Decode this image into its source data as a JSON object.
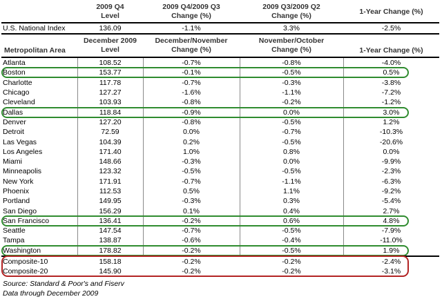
{
  "top_header": {
    "col0": "",
    "col1": [
      "2009 Q4",
      "Level"
    ],
    "col2": [
      "2009 Q4/2009 Q3",
      "Change (%)"
    ],
    "col3": [
      "2009 Q3/2009 Q2",
      "Change (%)"
    ],
    "col4": [
      "",
      "1-Year Change (%)"
    ]
  },
  "national": {
    "name": "U.S. National Index",
    "level": "136.09",
    "q4q3": "-1.1%",
    "q3q2": "3.3%",
    "yoy": "-2.5%"
  },
  "metro_header": {
    "col0": "Metropolitan Area",
    "col1": [
      "December 2009",
      "Level"
    ],
    "col2": [
      "December/November",
      "Change (%)"
    ],
    "col3": [
      "November/October",
      "Change (%)"
    ],
    "col4": "1-Year Change (%)"
  },
  "rows": [
    {
      "name": "Atlanta",
      "level": "108.52",
      "dn": "-0.7%",
      "no": "-0.8%",
      "yoy": "-4.0%"
    },
    {
      "name": "Boston",
      "level": "153.77",
      "dn": "-0.1%",
      "no": "-0.5%",
      "yoy": "0.5%",
      "highlight": "green"
    },
    {
      "name": "Charlotte",
      "level": "117.78",
      "dn": "-0.7%",
      "no": "-0.3%",
      "yoy": "-3.8%"
    },
    {
      "name": "Chicago",
      "level": "127.27",
      "dn": "-1.6%",
      "no": "-1.1%",
      "yoy": "-7.2%"
    },
    {
      "name": "Cleveland",
      "level": "103.93",
      "dn": "-0.8%",
      "no": "-0.2%",
      "yoy": "-1.2%"
    },
    {
      "name": "Dallas",
      "level": "118.84",
      "dn": "-0.9%",
      "no": "0.0%",
      "yoy": "3.0%",
      "highlight": "green"
    },
    {
      "name": "Denver",
      "level": "127.20",
      "dn": "-0.8%",
      "no": "-0.5%",
      "yoy": "1.2%"
    },
    {
      "name": "Detroit",
      "level": "72.59",
      "dn": "0.0%",
      "no": "-0.7%",
      "yoy": "-10.3%"
    },
    {
      "name": "Las Vegas",
      "level": "104.39",
      "dn": "0.2%",
      "no": "-0.5%",
      "yoy": "-20.6%"
    },
    {
      "name": "Los Angeles",
      "level": "171.40",
      "dn": "1.0%",
      "no": "0.8%",
      "yoy": "0.0%"
    },
    {
      "name": "Miami",
      "level": "148.66",
      "dn": "-0.3%",
      "no": "0.0%",
      "yoy": "-9.9%"
    },
    {
      "name": "Minneapolis",
      "level": "123.32",
      "dn": "-0.5%",
      "no": "-0.5%",
      "yoy": "-2.3%"
    },
    {
      "name": "New York",
      "level": "171.91",
      "dn": "-0.7%",
      "no": "-1.1%",
      "yoy": "-6.3%"
    },
    {
      "name": "Phoenix",
      "level": "112.53",
      "dn": "0.5%",
      "no": "1.1%",
      "yoy": "-9.2%"
    },
    {
      "name": "Portland",
      "level": "149.95",
      "dn": "-0.3%",
      "no": "0.3%",
      "yoy": "-5.4%"
    },
    {
      "name": "San Diego",
      "level": "156.29",
      "dn": "0.1%",
      "no": "0.4%",
      "yoy": "2.7%"
    },
    {
      "name": "San Francisco",
      "level": "136.41",
      "dn": "-0.2%",
      "no": "0.6%",
      "yoy": "4.8%",
      "highlight": "green"
    },
    {
      "name": "Seattle",
      "level": "147.54",
      "dn": "-0.7%",
      "no": "-0.5%",
      "yoy": "-7.9%"
    },
    {
      "name": "Tampa",
      "level": "138.87",
      "dn": "-0.6%",
      "no": "-0.4%",
      "yoy": "-11.0%"
    },
    {
      "name": "Washington",
      "level": "178.82",
      "dn": "-0.2%",
      "no": "-0.5%",
      "yoy": "1.9%",
      "highlight": "green"
    }
  ],
  "composites": [
    {
      "name": "Composite-10",
      "level": "158.18",
      "dn": "-0.2%",
      "no": "-0.2%",
      "yoy": "-2.4%"
    },
    {
      "name": "Composite-20",
      "level": "145.90",
      "dn": "-0.2%",
      "no": "-0.2%",
      "yoy": "-3.1%"
    }
  ],
  "highlight_colors": {
    "green": "#2e8b2e",
    "red": "#b22222",
    "brown": "#7a3b1a"
  },
  "source_lines": [
    "Source: Standard & Poor's and Fiserv",
    "Data through December 2009"
  ]
}
